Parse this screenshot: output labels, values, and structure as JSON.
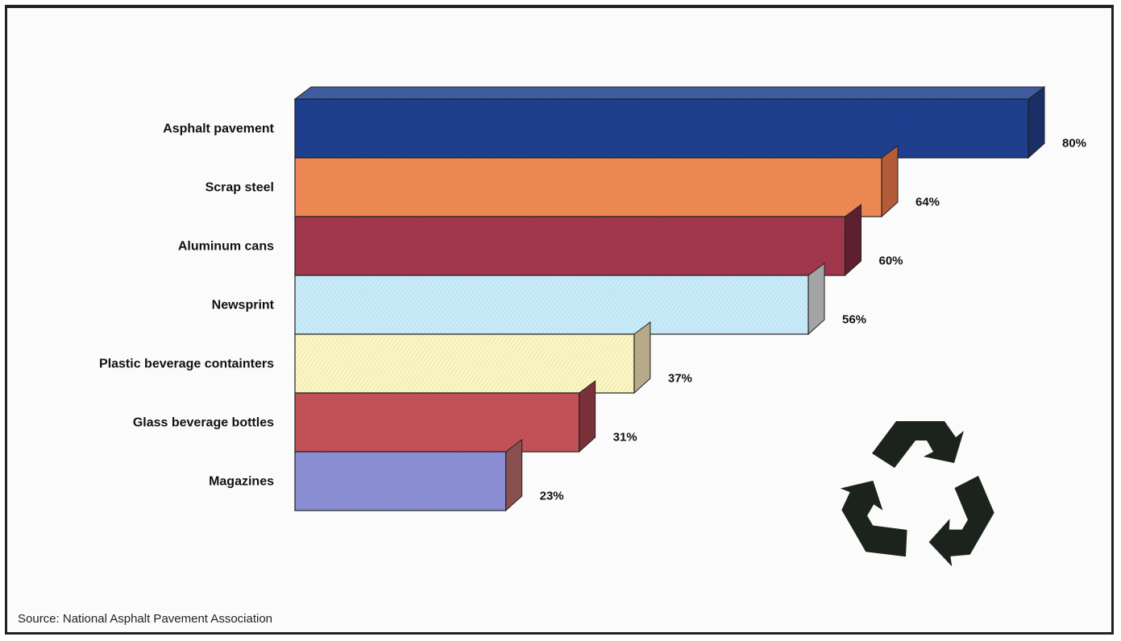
{
  "chart_data": {
    "type": "bar",
    "orientation": "horizontal",
    "categories": [
      "Asphalt pavement",
      "Scrap steel",
      "Aluminum cans",
      "Newsprint",
      "Plastic beverage containters",
      "Glass beverage bottles",
      "Magazines"
    ],
    "values": [
      80,
      64,
      60,
      56,
      37,
      31,
      23
    ],
    "value_labels": [
      "80%",
      "64%",
      "60%",
      "56%",
      "37%",
      "31%",
      "23%"
    ],
    "colors": [
      "#1f3f8f",
      "#f08a55",
      "#a3384d",
      "#c9ecfb",
      "#fcf6c2",
      "#c45258",
      "#8d8fd6"
    ],
    "side_colors": [
      "#1a2f66",
      "#b45b3a",
      "#5e2030",
      "#a4a4a6",
      "#b8a98a",
      "#7a3038",
      "#8a5050"
    ],
    "title": "",
    "xlabel": "",
    "ylabel": "",
    "xlim": [
      0,
      80
    ],
    "grid": false,
    "legend": "none"
  },
  "decoration": {
    "icon": "recycle-icon",
    "icon_color": "#1c231c"
  },
  "source": "Source: National Asphalt Pavement Association"
}
